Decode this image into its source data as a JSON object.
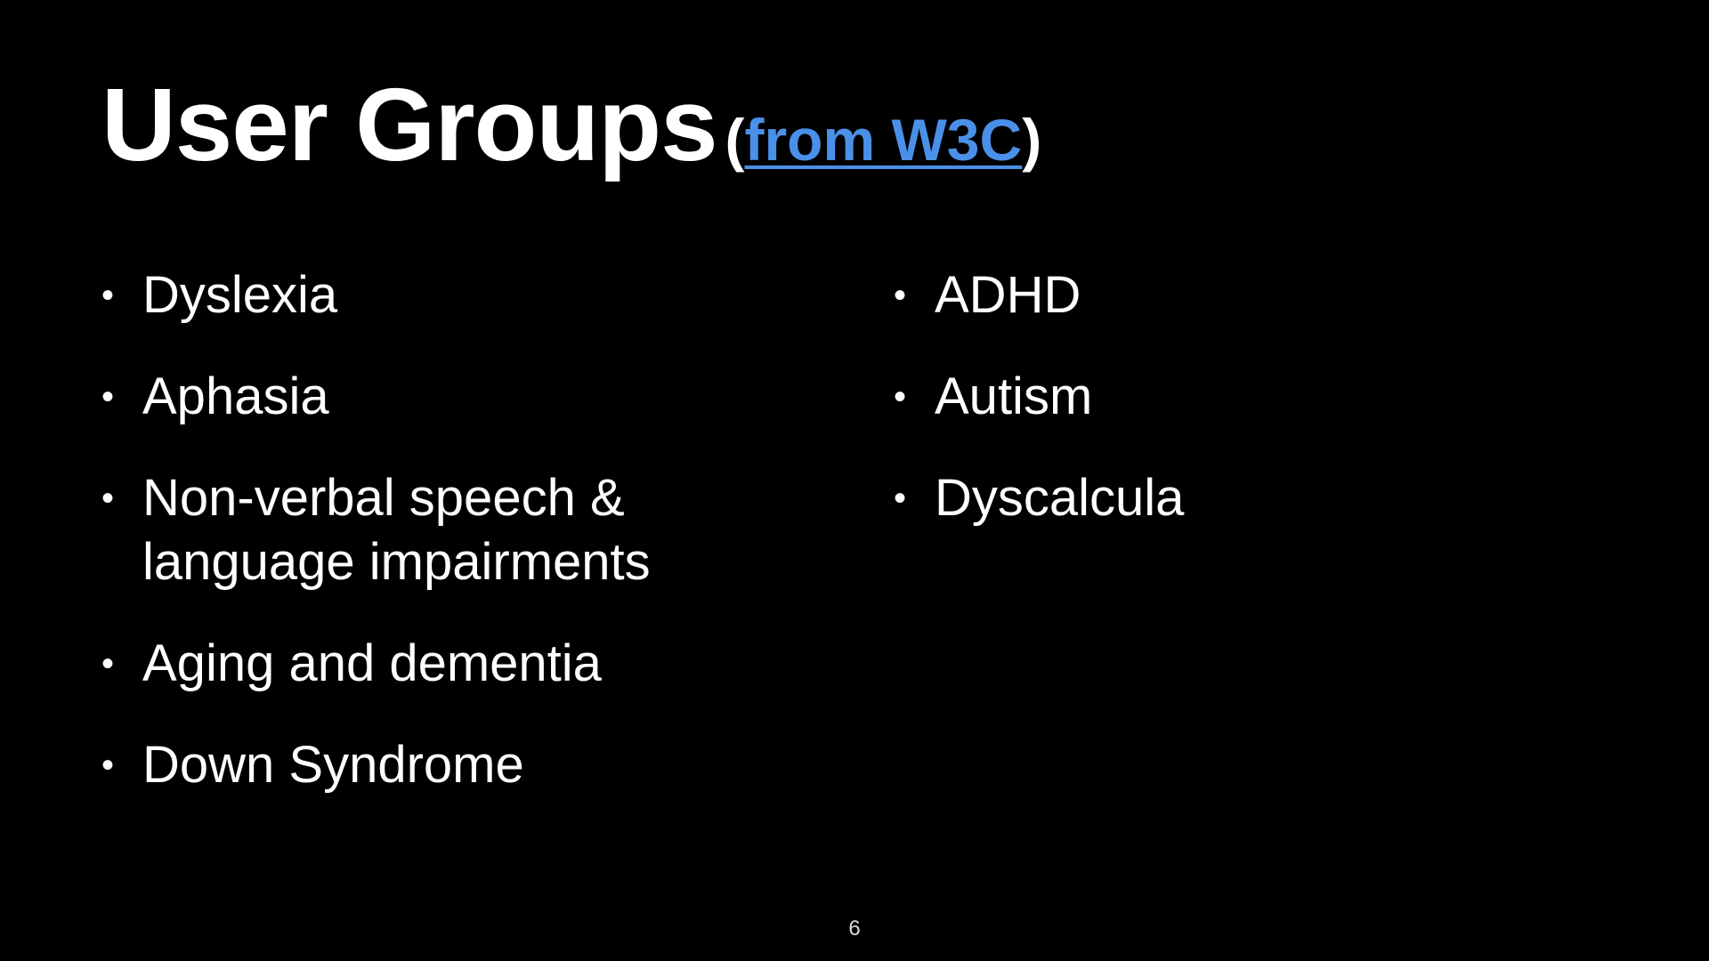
{
  "slide": {
    "title": "User Groups",
    "title_paren_open": "(",
    "title_link": "from W3C",
    "title_paren_close": ")",
    "link_color": "#4a90e8",
    "background": "#000000",
    "bullet_glyph": "•",
    "left_bullets": [
      "Dyslexia",
      "Aphasia",
      "Non-verbal speech & language impairments",
      "Aging and dementia",
      "Down Syndrome"
    ],
    "right_bullets": [
      "ADHD",
      "Autism",
      "Dyscalcula"
    ],
    "page_number": "6"
  }
}
